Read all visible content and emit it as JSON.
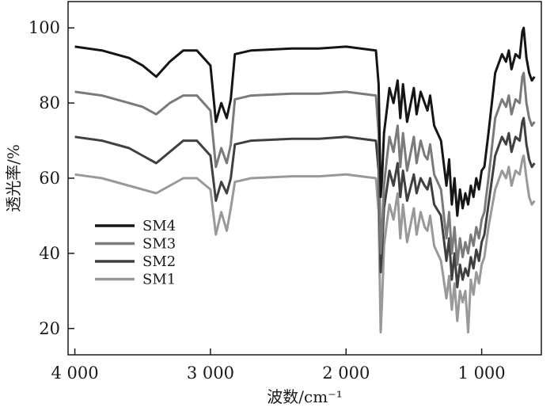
{
  "chart_data": {
    "type": "line",
    "title": "",
    "xlabel": "波数/cm⁻¹",
    "ylabel": "透光率/%",
    "xlim": [
      4050,
      560
    ],
    "ylim": [
      13,
      107
    ],
    "x_reversed": true,
    "grid": false,
    "legend_position": "middle-left",
    "x_ticks": [
      {
        "value": 4000,
        "label": "4 000"
      },
      {
        "value": 3000,
        "label": "3 000"
      },
      {
        "value": 2000,
        "label": "2 000"
      },
      {
        "value": 1000,
        "label": "1 000"
      }
    ],
    "y_ticks": [
      {
        "value": 100,
        "label": "100"
      },
      {
        "value": 80,
        "label": "80"
      },
      {
        "value": 60,
        "label": "60"
      },
      {
        "value": 40,
        "label": "40"
      },
      {
        "value": 20,
        "label": "20"
      }
    ],
    "series": [
      {
        "name": "SM4",
        "color": "#151515",
        "x": [
          4000,
          3800,
          3600,
          3500,
          3400,
          3300,
          3200,
          3100,
          3000,
          2960,
          2920,
          2880,
          2850,
          2820,
          2700,
          2400,
          2200,
          2000,
          1780,
          1760,
          1745,
          1735,
          1720,
          1700,
          1680,
          1650,
          1620,
          1600,
          1580,
          1550,
          1500,
          1480,
          1450,
          1420,
          1400,
          1380,
          1350,
          1300,
          1260,
          1240,
          1220,
          1200,
          1180,
          1160,
          1140,
          1120,
          1100,
          1080,
          1060,
          1040,
          1020,
          1000,
          980,
          950,
          900,
          850,
          820,
          800,
          780,
          750,
          720,
          700,
          690,
          670,
          650,
          630,
          610
        ],
        "y": [
          95,
          94,
          92,
          90,
          87,
          91,
          94,
          94,
          90,
          75,
          80,
          76,
          81,
          93,
          94,
          94.5,
          94.5,
          95,
          94,
          85,
          55,
          60,
          72,
          78,
          84,
          80,
          86,
          76,
          85,
          75,
          84,
          77,
          83,
          80,
          78,
          82,
          74,
          70,
          58,
          65,
          53,
          60,
          50,
          57,
          52,
          56,
          53,
          58,
          55,
          60,
          57,
          62,
          63,
          72,
          88,
          93,
          91,
          94,
          89,
          93,
          92,
          99,
          100,
          92,
          88,
          86,
          87
        ]
      },
      {
        "name": "SM3",
        "color": "#7a7a7a",
        "x": [
          4000,
          3800,
          3600,
          3500,
          3400,
          3300,
          3200,
          3100,
          3000,
          2960,
          2920,
          2880,
          2850,
          2820,
          2700,
          2400,
          2200,
          2000,
          1780,
          1760,
          1745,
          1735,
          1720,
          1700,
          1680,
          1650,
          1620,
          1600,
          1580,
          1550,
          1500,
          1480,
          1450,
          1420,
          1400,
          1380,
          1350,
          1300,
          1260,
          1240,
          1220,
          1200,
          1180,
          1160,
          1140,
          1120,
          1100,
          1080,
          1060,
          1040,
          1020,
          1000,
          980,
          950,
          900,
          850,
          820,
          800,
          780,
          750,
          720,
          700,
          690,
          670,
          650,
          630,
          610
        ],
        "y": [
          83,
          82,
          80,
          79,
          77,
          80,
          82,
          82,
          78,
          63,
          68,
          64,
          69,
          81,
          82,
          82.5,
          82.5,
          83,
          82,
          72,
          40,
          46,
          58,
          65,
          71,
          67,
          74,
          63,
          72,
          62,
          71,
          64,
          70,
          66,
          65,
          69,
          61,
          57,
          44,
          51,
          40,
          47,
          37,
          44,
          39,
          43,
          40,
          45,
          42,
          47,
          44,
          49,
          51,
          60,
          76,
          81,
          79,
          82,
          77,
          81,
          80,
          87,
          88,
          80,
          76,
          74,
          75
        ]
      },
      {
        "name": "SM2",
        "color": "#404040",
        "x": [
          4000,
          3800,
          3600,
          3500,
          3400,
          3300,
          3200,
          3100,
          3000,
          2960,
          2920,
          2880,
          2850,
          2820,
          2700,
          2400,
          2200,
          2000,
          1780,
          1760,
          1745,
          1735,
          1720,
          1700,
          1680,
          1650,
          1620,
          1600,
          1580,
          1550,
          1500,
          1480,
          1450,
          1420,
          1400,
          1380,
          1350,
          1300,
          1260,
          1240,
          1220,
          1200,
          1180,
          1160,
          1140,
          1120,
          1100,
          1080,
          1060,
          1040,
          1020,
          1000,
          980,
          950,
          900,
          850,
          820,
          800,
          780,
          750,
          720,
          700,
          690,
          670,
          650,
          630,
          610
        ],
        "y": [
          71,
          70,
          68,
          66,
          64,
          67,
          70,
          70,
          66,
          54,
          59,
          56,
          60,
          69,
          70,
          70.5,
          70.5,
          71,
          70,
          62,
          35,
          41,
          52,
          57,
          62,
          58,
          64,
          55,
          62,
          54,
          61,
          56,
          60,
          58,
          57,
          60,
          53,
          50,
          38,
          44,
          33,
          40,
          31,
          37,
          33,
          36,
          34,
          39,
          36,
          41,
          38,
          43,
          45,
          53,
          66,
          71,
          69,
          72,
          67,
          71,
          70,
          75,
          76,
          69,
          65,
          63,
          64
        ]
      },
      {
        "name": "SM1",
        "color": "#999999",
        "x": [
          4000,
          3800,
          3600,
          3500,
          3400,
          3300,
          3200,
          3100,
          3000,
          2960,
          2920,
          2880,
          2850,
          2820,
          2700,
          2400,
          2200,
          2000,
          1780,
          1760,
          1745,
          1735,
          1720,
          1700,
          1680,
          1650,
          1620,
          1600,
          1580,
          1550,
          1500,
          1480,
          1450,
          1420,
          1400,
          1380,
          1350,
          1300,
          1260,
          1240,
          1220,
          1200,
          1180,
          1160,
          1140,
          1120,
          1100,
          1080,
          1060,
          1040,
          1020,
          1000,
          980,
          950,
          900,
          850,
          820,
          800,
          780,
          750,
          720,
          700,
          690,
          670,
          650,
          630,
          610
        ],
        "y": [
          61,
          60,
          58,
          57,
          56,
          58,
          60,
          60,
          57,
          45,
          51,
          46,
          52,
          59,
          60,
          60.5,
          60.5,
          61,
          60,
          51,
          19,
          27,
          42,
          48,
          53,
          49,
          56,
          44,
          53,
          43,
          52,
          45,
          51,
          47,
          46,
          50,
          42,
          38,
          28,
          34,
          25,
          32,
          22,
          30,
          27,
          30,
          19,
          33,
          29,
          35,
          32,
          37,
          39,
          47,
          57,
          62,
          60,
          63,
          58,
          62,
          61,
          65,
          66,
          60,
          55,
          53,
          54
        ]
      }
    ]
  }
}
